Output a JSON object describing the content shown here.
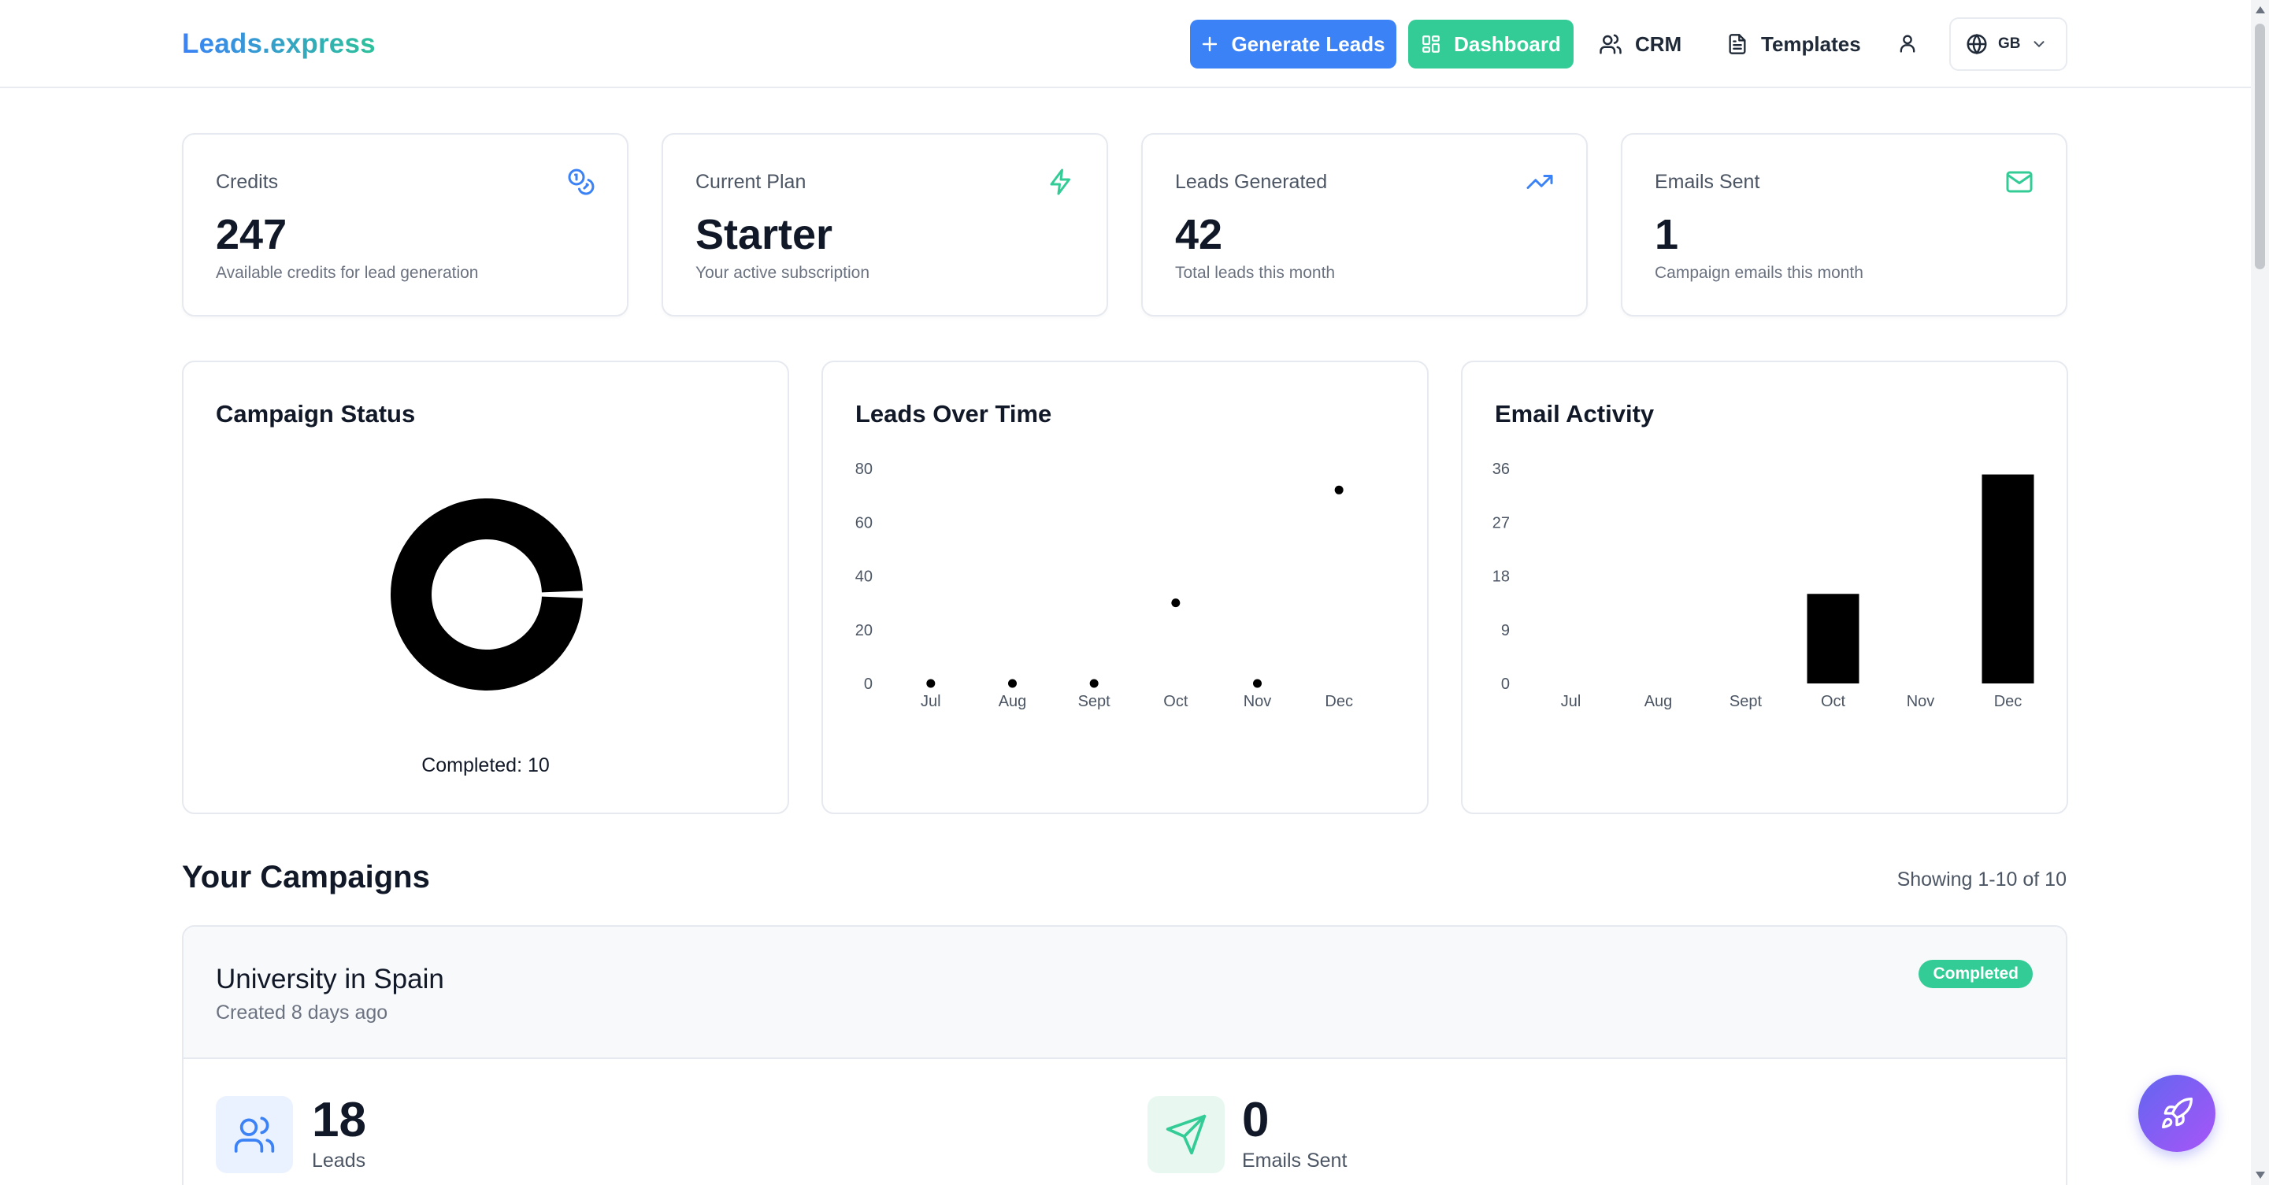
{
  "header": {
    "logo": "Leads.express",
    "generate_label": "Generate Leads",
    "dashboard_label": "Dashboard",
    "crm_label": "CRM",
    "templates_label": "Templates",
    "language": "GB"
  },
  "stats": [
    {
      "label": "Credits",
      "value": "247",
      "sub": "Available credits for lead generation",
      "icon": "coins-icon"
    },
    {
      "label": "Current Plan",
      "value": "Starter",
      "sub": "Your active subscription",
      "icon": "zap-icon"
    },
    {
      "label": "Leads Generated",
      "value": "42",
      "sub": "Total leads this month",
      "icon": "trending-up-icon"
    },
    {
      "label": "Emails Sent",
      "value": "1",
      "sub": "Campaign emails this month",
      "icon": "mail-icon"
    }
  ],
  "charts": {
    "status_title": "Campaign Status",
    "status_caption": "Completed: 10",
    "leads_title": "Leads Over Time",
    "email_title": "Email Activity"
  },
  "chart_data": [
    {
      "type": "pie",
      "title": "Campaign Status",
      "categories": [
        "Completed"
      ],
      "values": [
        10
      ],
      "donut": true
    },
    {
      "type": "scatter",
      "title": "Leads Over Time",
      "categories": [
        "Jul",
        "Aug",
        "Sept",
        "Oct",
        "Nov",
        "Dec"
      ],
      "values": [
        0,
        0,
        0,
        30,
        0,
        72
      ],
      "yticks": [
        0,
        20,
        40,
        60,
        80
      ],
      "ylim": [
        0,
        80
      ],
      "grid": false
    },
    {
      "type": "bar",
      "title": "Email Activity",
      "categories": [
        "Jul",
        "Aug",
        "Sept",
        "Oct",
        "Nov",
        "Dec"
      ],
      "values": [
        0,
        0,
        0,
        15,
        0,
        35
      ],
      "yticks": [
        0,
        9,
        18,
        27,
        36
      ],
      "ylim": [
        0,
        36
      ],
      "grid": false
    }
  ],
  "campaigns": {
    "title": "Your Campaigns",
    "showing": "Showing 1-10 of 10",
    "items": [
      {
        "name": "University in Spain",
        "created": "Created 8 days ago",
        "status": "Completed",
        "leads_value": "18",
        "leads_label": "Leads",
        "emails_value": "0",
        "emails_label": "Emails Sent"
      }
    ]
  },
  "colors": {
    "primary": "#3b82f6",
    "accent": "#33cc96",
    "fab_start": "#6366f1",
    "fab_end": "#a855f7"
  }
}
